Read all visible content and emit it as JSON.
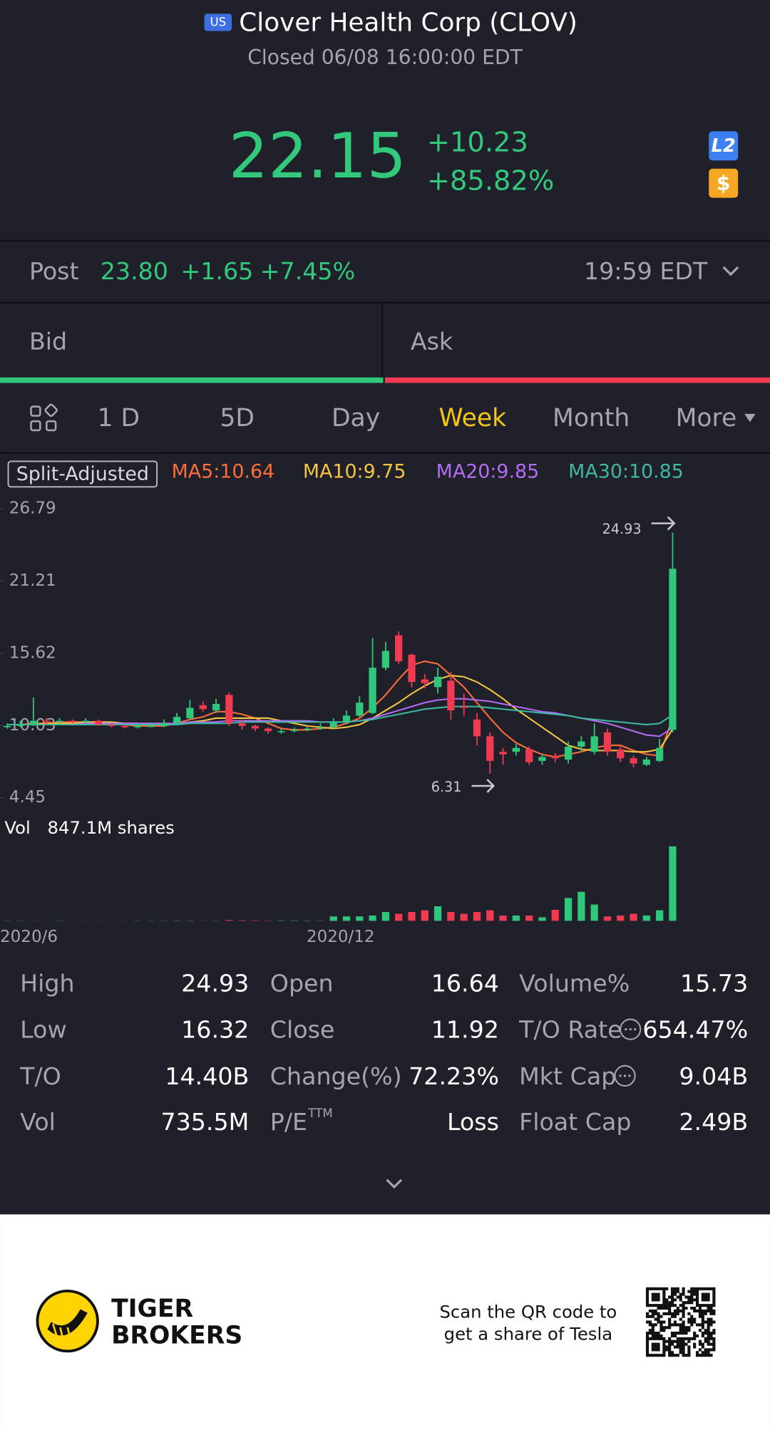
{
  "header": {
    "market_badge": "US",
    "title": "Clover Health Corp (CLOV)",
    "status": "Closed 06/08 16:00:00 EDT"
  },
  "quote": {
    "price": "22.15",
    "change": "+10.23",
    "change_pct": "+85.82%",
    "level2_badge": "L2",
    "dollar_badge": "$"
  },
  "post": {
    "label": "Post",
    "price": "23.80",
    "change": "+1.65",
    "change_pct": "+7.45%",
    "time": "19:59 EDT"
  },
  "order_book": {
    "bid": "Bid",
    "ask": "Ask"
  },
  "tabs": {
    "items": [
      "1 D",
      "5D",
      "Day",
      "Week",
      "Month",
      "More"
    ],
    "active": 3,
    "active_color": "#f5c518"
  },
  "chart": {
    "type": "candlestick",
    "split_label": "Split-Adjusted",
    "ylim": [
      4.45,
      26.79
    ],
    "yticks": [
      26.79,
      21.21,
      15.62,
      10.03,
      4.45
    ],
    "up_color": "#2fc77c",
    "down_color": "#f03a52",
    "high_marker": "24.93",
    "low_marker": "6.31",
    "open": [
      9.9,
      10.0,
      10.1,
      10.4,
      10.3,
      10.4,
      10.3,
      10.4,
      10.1,
      10.0,
      9.9,
      10.0,
      10.0,
      10.2,
      10.6,
      11.6,
      11.2,
      12.4,
      10.2,
      10.0,
      9.8,
      9.6,
      9.6,
      9.7,
      9.8,
      9.9,
      10.3,
      10.8,
      11.0,
      14.5,
      17.0,
      15.5,
      13.6,
      13.0,
      13.5,
      11.5,
      10.5,
      9.2,
      8.0,
      8.0,
      8.2,
      7.3,
      7.7,
      7.4,
      8.4,
      8.0,
      9.5,
      8.2,
      7.5,
      7.0,
      7.3,
      9.7
    ],
    "high": [
      10.2,
      10.4,
      12.2,
      10.6,
      10.6,
      10.5,
      10.6,
      10.5,
      10.2,
      10.1,
      10.2,
      10.2,
      10.5,
      11.0,
      12.0,
      11.9,
      12.1,
      12.6,
      10.5,
      10.1,
      9.9,
      9.8,
      9.9,
      10.0,
      10.2,
      10.6,
      11.2,
      12.3,
      16.8,
      16.5,
      17.3,
      15.6,
      14.0,
      14.5,
      14.2,
      12.5,
      11.0,
      9.5,
      8.3,
      8.6,
      8.4,
      7.8,
      7.9,
      8.8,
      9.2,
      10.2,
      9.8,
      8.5,
      7.7,
      7.6,
      9.0,
      24.93
    ],
    "low": [
      9.8,
      9.9,
      10.0,
      10.1,
      10.1,
      10.2,
      10.2,
      10.0,
      9.9,
      9.8,
      9.8,
      9.9,
      9.9,
      10.1,
      10.5,
      11.1,
      11.0,
      10.0,
      9.7,
      9.6,
      9.4,
      9.4,
      9.5,
      9.6,
      9.7,
      9.8,
      10.2,
      10.7,
      10.9,
      14.3,
      14.8,
      13.0,
      12.9,
      12.5,
      10.5,
      10.8,
      8.5,
      6.31,
      7.0,
      7.7,
      7.0,
      7.0,
      7.2,
      7.1,
      8.0,
      7.8,
      7.7,
      7.2,
      6.8,
      6.9,
      7.2,
      9.5
    ],
    "close": [
      10.0,
      10.1,
      10.4,
      10.3,
      10.4,
      10.3,
      10.4,
      10.1,
      10.0,
      9.9,
      10.0,
      10.0,
      10.2,
      10.7,
      11.4,
      11.3,
      11.7,
      10.2,
      10.0,
      9.8,
      9.6,
      9.6,
      9.7,
      9.8,
      9.9,
      10.3,
      10.8,
      11.8,
      14.5,
      15.8,
      15.0,
      13.4,
      13.3,
      13.8,
      11.2,
      11.4,
      9.2,
      7.3,
      7.8,
      8.3,
      7.2,
      7.6,
      7.5,
      8.4,
      8.8,
      9.2,
      8.0,
      7.5,
      7.1,
      7.4,
      8.3,
      22.15
    ],
    "ma": [
      {
        "name": "MA5",
        "label": "MA5:10.64",
        "color": "#ff6d3a",
        "values": [
          10.1,
          10.1,
          10.2,
          10.2,
          10.3,
          10.3,
          10.3,
          10.3,
          10.2,
          10.1,
          10.0,
          10.0,
          10.0,
          10.2,
          10.5,
          10.7,
          11.1,
          11.1,
          10.9,
          10.6,
          10.2,
          9.8,
          9.7,
          9.7,
          9.8,
          9.9,
          10.2,
          10.6,
          11.4,
          12.4,
          13.6,
          14.7,
          15.0,
          14.8,
          13.9,
          13.0,
          11.8,
          10.6,
          9.5,
          8.7,
          8.2,
          7.8,
          7.6,
          7.8,
          8.0,
          8.3,
          8.5,
          8.5,
          8.1,
          7.8,
          7.7,
          10.64
        ]
      },
      {
        "name": "MA10",
        "label": "MA10:9.75",
        "color": "#f5c542",
        "values": [
          10.1,
          10.1,
          10.1,
          10.2,
          10.2,
          10.2,
          10.3,
          10.3,
          10.3,
          10.2,
          10.2,
          10.1,
          10.1,
          10.1,
          10.3,
          10.4,
          10.6,
          10.6,
          10.6,
          10.6,
          10.6,
          10.4,
          10.2,
          10.0,
          9.9,
          9.8,
          9.9,
          10.1,
          10.6,
          11.2,
          11.8,
          12.5,
          13.1,
          13.6,
          13.9,
          13.8,
          13.4,
          12.8,
          12.1,
          11.3,
          10.6,
          9.9,
          9.2,
          8.5,
          8.2,
          8.1,
          8.1,
          8.1,
          8.0,
          8.0,
          8.2,
          9.75
        ]
      },
      {
        "name": "MA20",
        "label": "MA20:9.85",
        "color": "#b36cf5",
        "values": [
          10.1,
          10.1,
          10.1,
          10.1,
          10.1,
          10.1,
          10.2,
          10.2,
          10.2,
          10.2,
          10.2,
          10.2,
          10.2,
          10.2,
          10.3,
          10.3,
          10.3,
          10.4,
          10.4,
          10.4,
          10.4,
          10.4,
          10.4,
          10.4,
          10.3,
          10.3,
          10.3,
          10.4,
          10.6,
          10.9,
          11.2,
          11.5,
          11.8,
          12.0,
          12.1,
          12.1,
          12.0,
          11.9,
          11.7,
          11.5,
          11.3,
          11.1,
          11.0,
          10.8,
          10.6,
          10.4,
          10.2,
          9.9,
          9.6,
          9.3,
          9.2,
          9.85
        ]
      },
      {
        "name": "MA30",
        "label": "MA30:10.85",
        "color": "#3db9a2",
        "values": [
          10.1,
          10.1,
          10.1,
          10.1,
          10.1,
          10.1,
          10.1,
          10.1,
          10.1,
          10.1,
          10.1,
          10.1,
          10.1,
          10.1,
          10.2,
          10.2,
          10.2,
          10.2,
          10.3,
          10.3,
          10.3,
          10.3,
          10.3,
          10.3,
          10.3,
          10.3,
          10.3,
          10.4,
          10.5,
          10.7,
          10.9,
          11.1,
          11.3,
          11.4,
          11.5,
          11.5,
          11.5,
          11.4,
          11.3,
          11.2,
          11.1,
          11.0,
          10.9,
          10.8,
          10.6,
          10.5,
          10.4,
          10.3,
          10.2,
          10.1,
          10.2,
          10.85
        ]
      }
    ],
    "volume_label": "Vol",
    "volume_text": "847.1M shares",
    "vlim": [
      0,
      850
    ],
    "volume": [
      2,
      2,
      1,
      1,
      2,
      1,
      1,
      1,
      1,
      1,
      2,
      2,
      2,
      3,
      3,
      2,
      2,
      8,
      6,
      5,
      4,
      4,
      4,
      3,
      3,
      50,
      50,
      50,
      60,
      100,
      80,
      100,
      120,
      165,
      100,
      80,
      100,
      120,
      60,
      60,
      60,
      40,
      125,
      260,
      330,
      185,
      50,
      60,
      80,
      60,
      120,
      847.1
    ],
    "x_labels": [
      "2020/6",
      "2020/12"
    ]
  },
  "stats": [
    [
      {
        "label": "High",
        "value": "24.93"
      },
      {
        "label": "Low",
        "value": "16.32"
      },
      {
        "label": "T/O",
        "value": "14.40B"
      },
      {
        "label": "Vol",
        "value": "735.5M"
      }
    ],
    [
      {
        "label": "Open",
        "value": "16.64"
      },
      {
        "label": "Close",
        "value": "11.92"
      },
      {
        "label": "Change(%)",
        "value": "72.23%"
      },
      {
        "label": "P/E",
        "sup": "TTM",
        "value": "Loss"
      }
    ],
    [
      {
        "label": "Volume%",
        "value": "15.73"
      },
      {
        "label": "T/O Rate",
        "value": "654.47%"
      },
      {
        "label": "Mkt Cap",
        "value": "9.04B"
      },
      {
        "label": "Float Cap",
        "value": "2.49B"
      }
    ]
  ],
  "footer": {
    "brand_line1": "TIGER",
    "brand_line2": "BROKERS",
    "promo_line1": "Scan the QR code to",
    "promo_line2": "get a share of Tesla"
  }
}
